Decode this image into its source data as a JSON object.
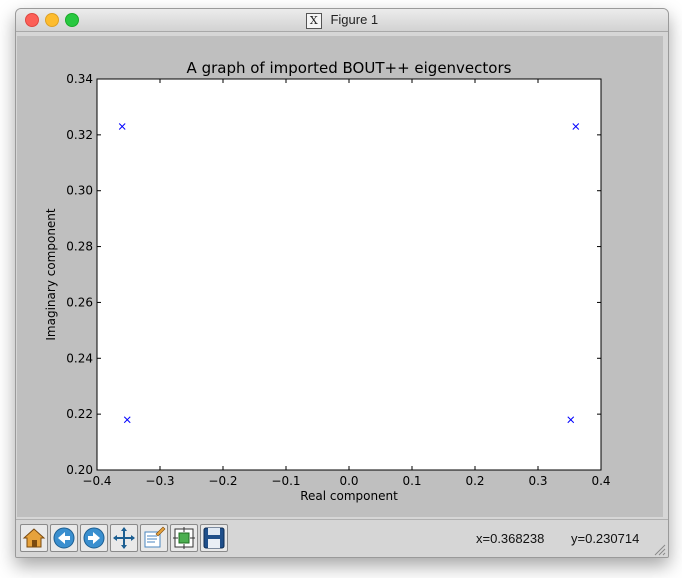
{
  "window": {
    "title": "Figure 1",
    "x_logo": "X"
  },
  "toolbar": {
    "buttons": [
      "home-icon",
      "back-arrow-icon",
      "forward-arrow-icon",
      "pan-arrows-icon",
      "edit-icon",
      "configure-subplots-icon",
      "save-icon"
    ],
    "coord_x": "x=0.368238",
    "coord_y": "y=0.230714"
  },
  "chart_data": {
    "type": "scatter",
    "title": "A graph of imported BOUT++ eigenvectors",
    "xlabel": "Real component",
    "ylabel": "Imaginary component",
    "xlim": [
      -0.4,
      0.4
    ],
    "ylim": [
      0.2,
      0.34
    ],
    "x_ticks": [
      "−0.4",
      "−0.3",
      "−0.2",
      "−0.1",
      "0.0",
      "0.1",
      "0.2",
      "0.3",
      "0.4"
    ],
    "y_ticks": [
      "0.20",
      "0.22",
      "0.24",
      "0.26",
      "0.28",
      "0.30",
      "0.32",
      "0.34"
    ],
    "marker": "x",
    "color": "#0000ff",
    "grid": false,
    "points": [
      {
        "x": -0.36,
        "y": 0.323
      },
      {
        "x": 0.36,
        "y": 0.323
      },
      {
        "x": -0.352,
        "y": 0.218
      },
      {
        "x": 0.352,
        "y": 0.218
      }
    ]
  }
}
